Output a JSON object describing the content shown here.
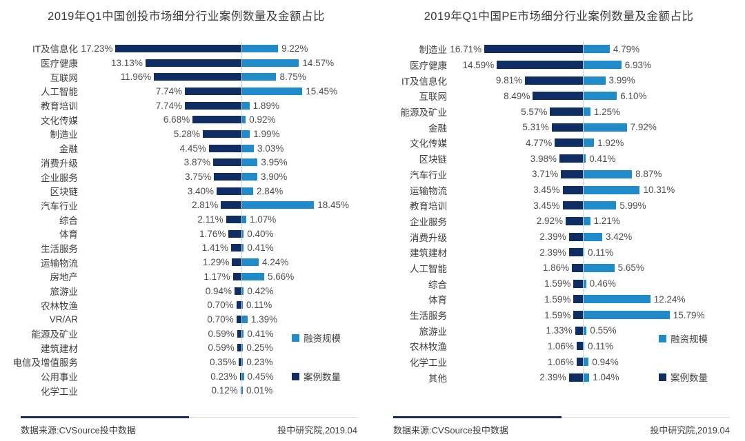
{
  "colors": {
    "case_count_navy": "#0f2d63",
    "funding_light_blue": "#1f8cc9",
    "axis_line": "#c9d8e6",
    "footer_line_navy": "#1b2a5e",
    "title_text": "#3a3a3a",
    "value_text": "#4d4d4d"
  },
  "footer": {
    "source": "数据来源:CVSource投中数据",
    "credit": "投中研究院,2019.04"
  },
  "chart_data": [
    {
      "type": "bar",
      "title": "2019年Q1中国创投市场细分行业案例数量及金额占比",
      "layout_hint": "diverging horizontal bars; zero axis in center; 案例数量 extends left, 融资规模 extends right; value labels at outer bar ends; legend stacked at mid-right; grid off",
      "value_format": "0.00%",
      "categories": [
        "IT及信息化",
        "医疗健康",
        "互联网",
        "人工智能",
        "教育培训",
        "文化传媒",
        "制造业",
        "金融",
        "消费升级",
        "企业服务",
        "区块链",
        "汽车行业",
        "综合",
        "体育",
        "生活服务",
        "运输物流",
        "房地产",
        "旅游业",
        "农林牧渔",
        "VR/AR",
        "能源及矿业",
        "建筑建材",
        "电信及增值服务",
        "公用事业",
        "化学工业"
      ],
      "series": [
        {
          "name": "案例数量",
          "side": "left",
          "color": "#0f2d63",
          "values": [
            17.23,
            13.13,
            11.96,
            7.74,
            7.74,
            6.68,
            5.28,
            4.45,
            3.87,
            3.75,
            3.4,
            2.81,
            2.11,
            1.76,
            1.41,
            1.29,
            1.17,
            0.94,
            0.7,
            0.7,
            0.59,
            0.59,
            0.35,
            0.23,
            0.12
          ]
        },
        {
          "name": "融资规模",
          "side": "right",
          "color": "#1f8cc9",
          "values": [
            9.22,
            14.57,
            8.75,
            15.45,
            1.89,
            0.92,
            1.99,
            3.03,
            3.95,
            3.9,
            2.84,
            18.45,
            1.07,
            0.4,
            0.41,
            4.24,
            5.66,
            0.42,
            0.11,
            1.39,
            0.41,
            0.25,
            0.23,
            0.45,
            0.01
          ]
        }
      ]
    },
    {
      "type": "bar",
      "title": "2019年Q1中国PE市场细分行业案例数量及金额占比",
      "layout_hint": "diverging horizontal bars; zero axis in center; 案例数量 extends left, 融资规模 extends right; value labels at outer bar ends; legend stacked at mid-right; grid off",
      "value_format": "0.00%",
      "categories": [
        "制造业",
        "医疗健康",
        "IT及信息化",
        "互联网",
        "能源及矿业",
        "金融",
        "文化传媒",
        "区块链",
        "汽车行业",
        "运输物流",
        "教育培训",
        "企业服务",
        "消费升级",
        "建筑建材",
        "人工智能",
        "综合",
        "体育",
        "生活服务",
        "旅游业",
        "农林牧渔",
        "化学工业",
        "其他"
      ],
      "series": [
        {
          "name": "案例数量",
          "side": "left",
          "color": "#0f2d63",
          "values": [
            16.71,
            14.59,
            9.81,
            8.49,
            5.57,
            5.31,
            4.77,
            3.98,
            3.71,
            3.45,
            3.45,
            2.92,
            2.39,
            2.39,
            1.86,
            1.59,
            1.59,
            1.59,
            1.33,
            1.06,
            1.06,
            2.39
          ]
        },
        {
          "name": "融资规模",
          "side": "right",
          "color": "#1f8cc9",
          "values": [
            4.79,
            6.93,
            3.99,
            6.1,
            1.25,
            7.92,
            1.92,
            0.41,
            8.87,
            10.31,
            5.99,
            1.21,
            3.42,
            0.11,
            5.65,
            0.46,
            12.24,
            15.79,
            0.55,
            0.11,
            0.94,
            1.04
          ]
        }
      ]
    }
  ]
}
